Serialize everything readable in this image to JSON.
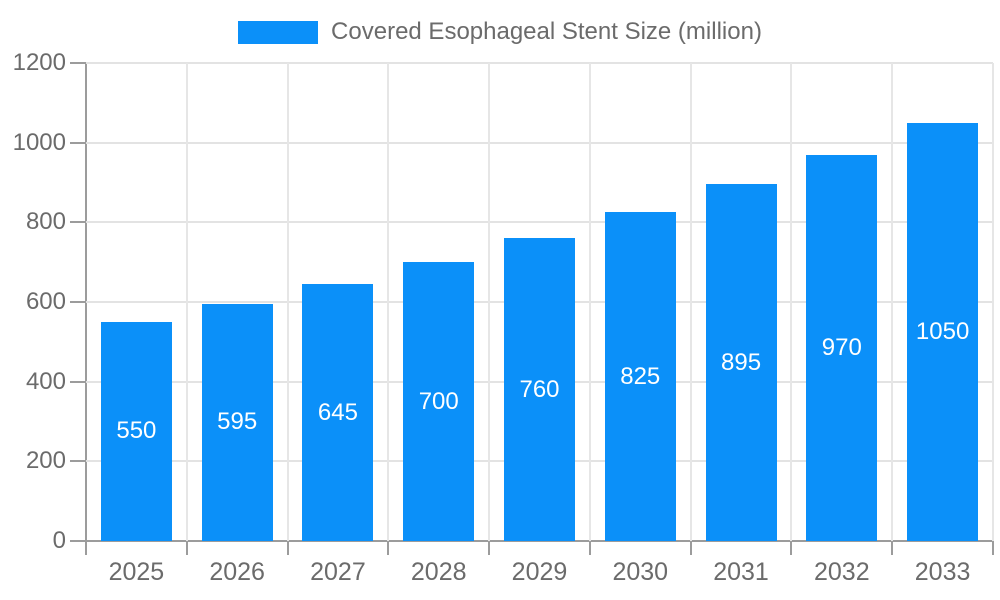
{
  "chart_data": {
    "type": "bar",
    "legend_label": "Covered Esophageal Stent Size (million)",
    "title": "Covered Esophageal Stent Size (million)",
    "categories": [
      "2025",
      "2026",
      "2027",
      "2028",
      "2029",
      "2030",
      "2031",
      "2032",
      "2033"
    ],
    "values": [
      550,
      595,
      645,
      700,
      760,
      825,
      895,
      970,
      1050
    ],
    "xlabel": "",
    "ylabel": "",
    "ylim": [
      0,
      1200
    ],
    "ytick_step": 200,
    "ytick_labels": [
      "0",
      "200",
      "400",
      "600",
      "800",
      "1000",
      "1200"
    ],
    "grid": "on",
    "legend_position": "top-center",
    "colors": {
      "bar": "#0b90f9",
      "value_label": "#ffffff",
      "tick_text": "#6b6b6b",
      "gridline": "#e3e3e3",
      "axis": "#9c9c9c",
      "background": "#ffffff"
    }
  }
}
